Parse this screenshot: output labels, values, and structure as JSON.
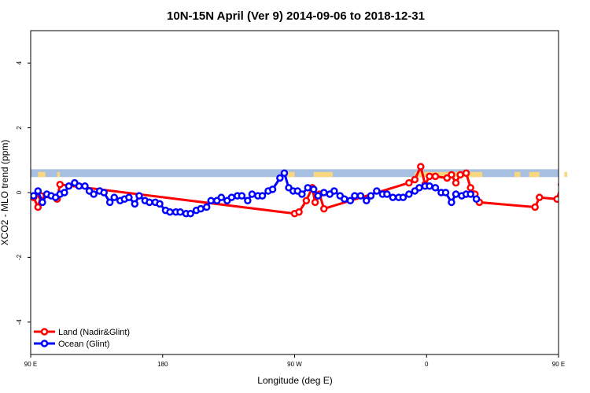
{
  "chart_data": {
    "type": "line",
    "title": "10N-15N April (Ver 9)   2014-09-06 to 2018-12-31",
    "xlabel": "Longitude (deg E)",
    "ylabel": "XCO2 - MLO trend (ppm)",
    "xlim": [
      90,
      450
    ],
    "ylim": [
      -5,
      5
    ],
    "x_ticks": [
      {
        "value": 90,
        "label": "90 E"
      },
      {
        "value": 180,
        "label": "180"
      },
      {
        "value": 270,
        "label": "90 W"
      },
      {
        "value": 360,
        "label": "0"
      },
      {
        "value": 450,
        "label": "90 E"
      },
      {
        "value": 540,
        "label": "180"
      }
    ],
    "y_ticks": [
      -4,
      -2,
      0,
      2,
      4
    ],
    "legend_position": "bottom-left",
    "band": {
      "y_range": [
        0.48,
        0.72
      ],
      "color": "#a7bfe0",
      "land_color": "#f9d77e"
    },
    "series": [
      {
        "name": "Land (Nadir&Glint)",
        "color": "#ff0000",
        "points": [
          [
            92,
            -0.15
          ],
          [
            95,
            -0.45
          ],
          [
            97,
            -0.1
          ],
          [
            108,
            -0.2
          ],
          [
            110,
            0.25
          ],
          [
            270,
            -0.65
          ],
          [
            273,
            -0.6
          ],
          [
            278,
            -0.25
          ],
          [
            282,
            0.15
          ],
          [
            284,
            -0.3
          ],
          [
            287,
            -0.05
          ],
          [
            290,
            -0.5
          ],
          [
            348,
            0.3
          ],
          [
            352,
            0.4
          ],
          [
            356,
            0.8
          ],
          [
            359,
            0.25
          ],
          [
            362,
            0.5
          ],
          [
            366,
            0.5
          ],
          [
            374,
            0.45
          ],
          [
            377,
            0.55
          ],
          [
            380,
            0.3
          ],
          [
            383,
            0.55
          ],
          [
            387,
            0.6
          ],
          [
            390,
            0.15
          ],
          [
            393,
            -0.05
          ],
          [
            396,
            -0.3
          ],
          [
            434,
            -0.45
          ],
          [
            437,
            -0.15
          ],
          [
            449,
            -0.2
          ],
          [
            452,
            0.25
          ]
        ]
      },
      {
        "name": "Ocean (Glint)",
        "color": "#0000ff",
        "points": [
          [
            92,
            -0.1
          ],
          [
            95,
            0.05
          ],
          [
            98,
            -0.3
          ],
          [
            101,
            -0.05
          ],
          [
            104,
            -0.1
          ],
          [
            107,
            -0.15
          ],
          [
            110,
            -0.05
          ],
          [
            113,
            0
          ],
          [
            116,
            0.2
          ],
          [
            120,
            0.3
          ],
          [
            123,
            0.2
          ],
          [
            127,
            0.2
          ],
          [
            130,
            0.05
          ],
          [
            133,
            -0.05
          ],
          [
            137,
            0.05
          ],
          [
            140,
            0
          ],
          [
            144,
            -0.3
          ],
          [
            147,
            -0.15
          ],
          [
            151,
            -0.25
          ],
          [
            154,
            -0.2
          ],
          [
            157,
            -0.15
          ],
          [
            161,
            -0.35
          ],
          [
            164,
            -0.1
          ],
          [
            168,
            -0.25
          ],
          [
            171,
            -0.3
          ],
          [
            175,
            -0.3
          ],
          [
            178,
            -0.35
          ],
          [
            182,
            -0.55
          ],
          [
            185,
            -0.6
          ],
          [
            189,
            -0.6
          ],
          [
            192,
            -0.6
          ],
          [
            196,
            -0.65
          ],
          [
            199,
            -0.65
          ],
          [
            203,
            -0.55
          ],
          [
            206,
            -0.5
          ],
          [
            210,
            -0.45
          ],
          [
            213,
            -0.25
          ],
          [
            217,
            -0.25
          ],
          [
            220,
            -0.15
          ],
          [
            224,
            -0.25
          ],
          [
            227,
            -0.15
          ],
          [
            231,
            -0.1
          ],
          [
            234,
            -0.1
          ],
          [
            238,
            -0.25
          ],
          [
            241,
            -0.05
          ],
          [
            245,
            -0.1
          ],
          [
            248,
            -0.1
          ],
          [
            252,
            0.05
          ],
          [
            255,
            0.1
          ],
          [
            260,
            0.45
          ],
          [
            263,
            0.6
          ],
          [
            266,
            0.15
          ],
          [
            269,
            0.05
          ],
          [
            272,
            0.05
          ],
          [
            275,
            -0.05
          ],
          [
            279,
            0.15
          ],
          [
            283,
            0.1
          ],
          [
            286,
            -0.1
          ],
          [
            290,
            0
          ],
          [
            294,
            -0.05
          ],
          [
            297,
            0.05
          ],
          [
            301,
            -0.1
          ],
          [
            304,
            -0.2
          ],
          [
            308,
            -0.25
          ],
          [
            311,
            -0.1
          ],
          [
            315,
            -0.1
          ],
          [
            319,
            -0.25
          ],
          [
            322,
            -0.1
          ],
          [
            326,
            0.05
          ],
          [
            330,
            -0.05
          ],
          [
            333,
            -0.05
          ],
          [
            337,
            -0.15
          ],
          [
            341,
            -0.15
          ],
          [
            344,
            -0.15
          ],
          [
            348,
            -0.05
          ],
          [
            352,
            0.05
          ],
          [
            355,
            0.15
          ],
          [
            359,
            0.2
          ],
          [
            362,
            0.2
          ],
          [
            366,
            0.15
          ],
          [
            370,
            0
          ],
          [
            373,
            0
          ],
          [
            377,
            -0.3
          ],
          [
            380,
            -0.05
          ],
          [
            384,
            -0.1
          ],
          [
            387,
            -0.05
          ],
          [
            390,
            -0.05
          ],
          [
            394,
            -0.2
          ]
        ]
      }
    ]
  }
}
